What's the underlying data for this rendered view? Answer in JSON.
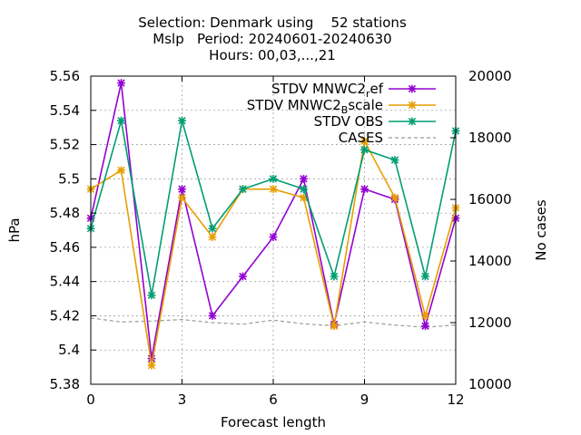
{
  "chart_data": {
    "type": "line",
    "title_lines": [
      "Selection: Denmark using    52 stations",
      "Mslp   Period: 20240601-20240630",
      "Hours: 00,03,...,21"
    ],
    "xlabel": "Forecast length",
    "ylabel": "hPa",
    "y2label": "No cases",
    "xlim": [
      0,
      12
    ],
    "ylim": [
      5.38,
      5.56
    ],
    "y2lim": [
      10000,
      20000
    ],
    "xticks": [
      0,
      3,
      6,
      9,
      12
    ],
    "yticks": [
      5.38,
      5.4,
      5.42,
      5.44,
      5.46,
      5.48,
      5.5,
      5.52,
      5.54,
      5.56
    ],
    "yticklabels": [
      "5.38",
      "5.4",
      "5.42",
      "5.44",
      "5.46",
      "5.48",
      "5.5",
      "5.52",
      "5.54",
      "5.56"
    ],
    "y2ticks": [
      10000,
      12000,
      14000,
      16000,
      18000,
      20000
    ],
    "grid": true,
    "legend_position": "top-right",
    "x": [
      0,
      1,
      2,
      3,
      4,
      5,
      6,
      7,
      8,
      9,
      10,
      11,
      12
    ],
    "series": [
      {
        "name": "STDV MNWC2_ref",
        "legend_main": "STDV MNWC2",
        "legend_sub": "r",
        "legend_rest": "ef",
        "color": "#9400D3",
        "marker": "x",
        "axis": "y",
        "values": [
          5.477,
          5.556,
          5.395,
          5.494,
          5.42,
          5.443,
          5.466,
          5.5,
          5.415,
          5.494,
          5.488,
          5.414,
          5.477
        ]
      },
      {
        "name": "STDV MNWC2_Bscale",
        "legend_main": "STDV MNWC2",
        "legend_sub": "B",
        "legend_rest": "scale",
        "color": "#E69F00",
        "marker": "x",
        "axis": "y",
        "values": [
          5.494,
          5.505,
          5.391,
          5.489,
          5.466,
          5.494,
          5.494,
          5.489,
          5.414,
          5.522,
          5.489,
          5.42,
          5.483
        ]
      },
      {
        "name": "STDV OBS",
        "legend_main": "STDV OBS",
        "legend_sub": "",
        "legend_rest": "",
        "color": "#009E73",
        "marker": "x",
        "axis": "y",
        "values": [
          5.471,
          5.534,
          5.432,
          5.534,
          5.471,
          5.494,
          5.5,
          5.494,
          5.443,
          5.517,
          5.511,
          5.443,
          5.528
        ]
      },
      {
        "name": "CASES",
        "legend_main": "CASES",
        "legend_sub": "",
        "legend_rest": "",
        "color": "#999999",
        "marker": "none",
        "dashed": true,
        "axis": "y2",
        "values": [
          12150,
          12020,
          12050,
          12100,
          12000,
          11950,
          12080,
          11960,
          11900,
          12020,
          11920,
          11850,
          11920
        ]
      }
    ]
  }
}
